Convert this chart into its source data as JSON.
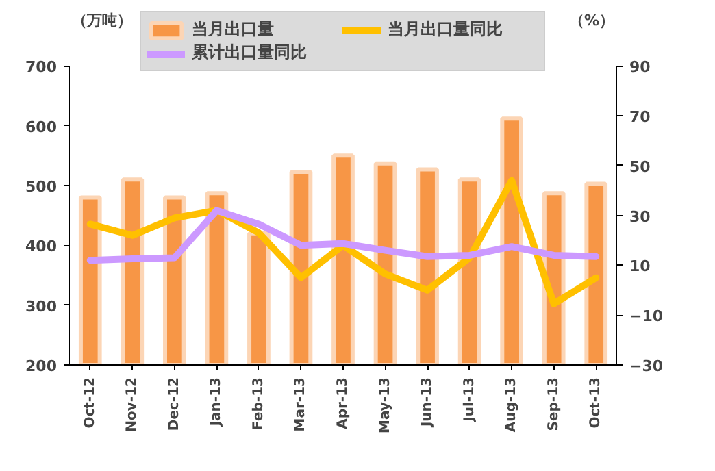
{
  "chart_data": {
    "type": "bar",
    "categories": [
      "Oct-12",
      "Nov-12",
      "Dec-12",
      "Jan-13",
      "Feb-13",
      "Mar-13",
      "Apr-13",
      "May-13",
      "Jun-13",
      "Jul-13",
      "Aug-13",
      "Sep-13",
      "Oct-13"
    ],
    "ylabel": "（万吨）",
    "y2label": "（%）",
    "series": [
      {
        "name": "当月出口量",
        "color": "#f79646",
        "values": [
          480,
          510,
          480,
          487,
          420,
          523,
          550,
          537,
          527,
          510,
          612,
          487,
          503
        ]
      },
      {
        "name": "当月出口量同比",
        "type": "line",
        "axis": "y2",
        "color": "#ffc000",
        "values": [
          26.5,
          22,
          29,
          32,
          23,
          5,
          18,
          6.5,
          0,
          13,
          44,
          -5.5,
          5
        ]
      },
      {
        "name": "累计出口量同比",
        "type": "line",
        "axis": "y2",
        "color": "#cc99ff",
        "values": [
          12,
          12.6,
          13,
          32,
          26.5,
          18,
          18.7,
          16,
          13.5,
          14,
          17.5,
          14,
          13.5
        ]
      }
    ],
    "ylim": [
      200,
      700
    ],
    "yticks": [
      200,
      300,
      400,
      500,
      600,
      700
    ],
    "y2lim": [
      -30,
      90
    ],
    "y2ticks": [
      -30,
      -10,
      10,
      30,
      50,
      70,
      90
    ],
    "grid": false,
    "legend": "top",
    "line_style": "solid",
    "marker": "none"
  }
}
